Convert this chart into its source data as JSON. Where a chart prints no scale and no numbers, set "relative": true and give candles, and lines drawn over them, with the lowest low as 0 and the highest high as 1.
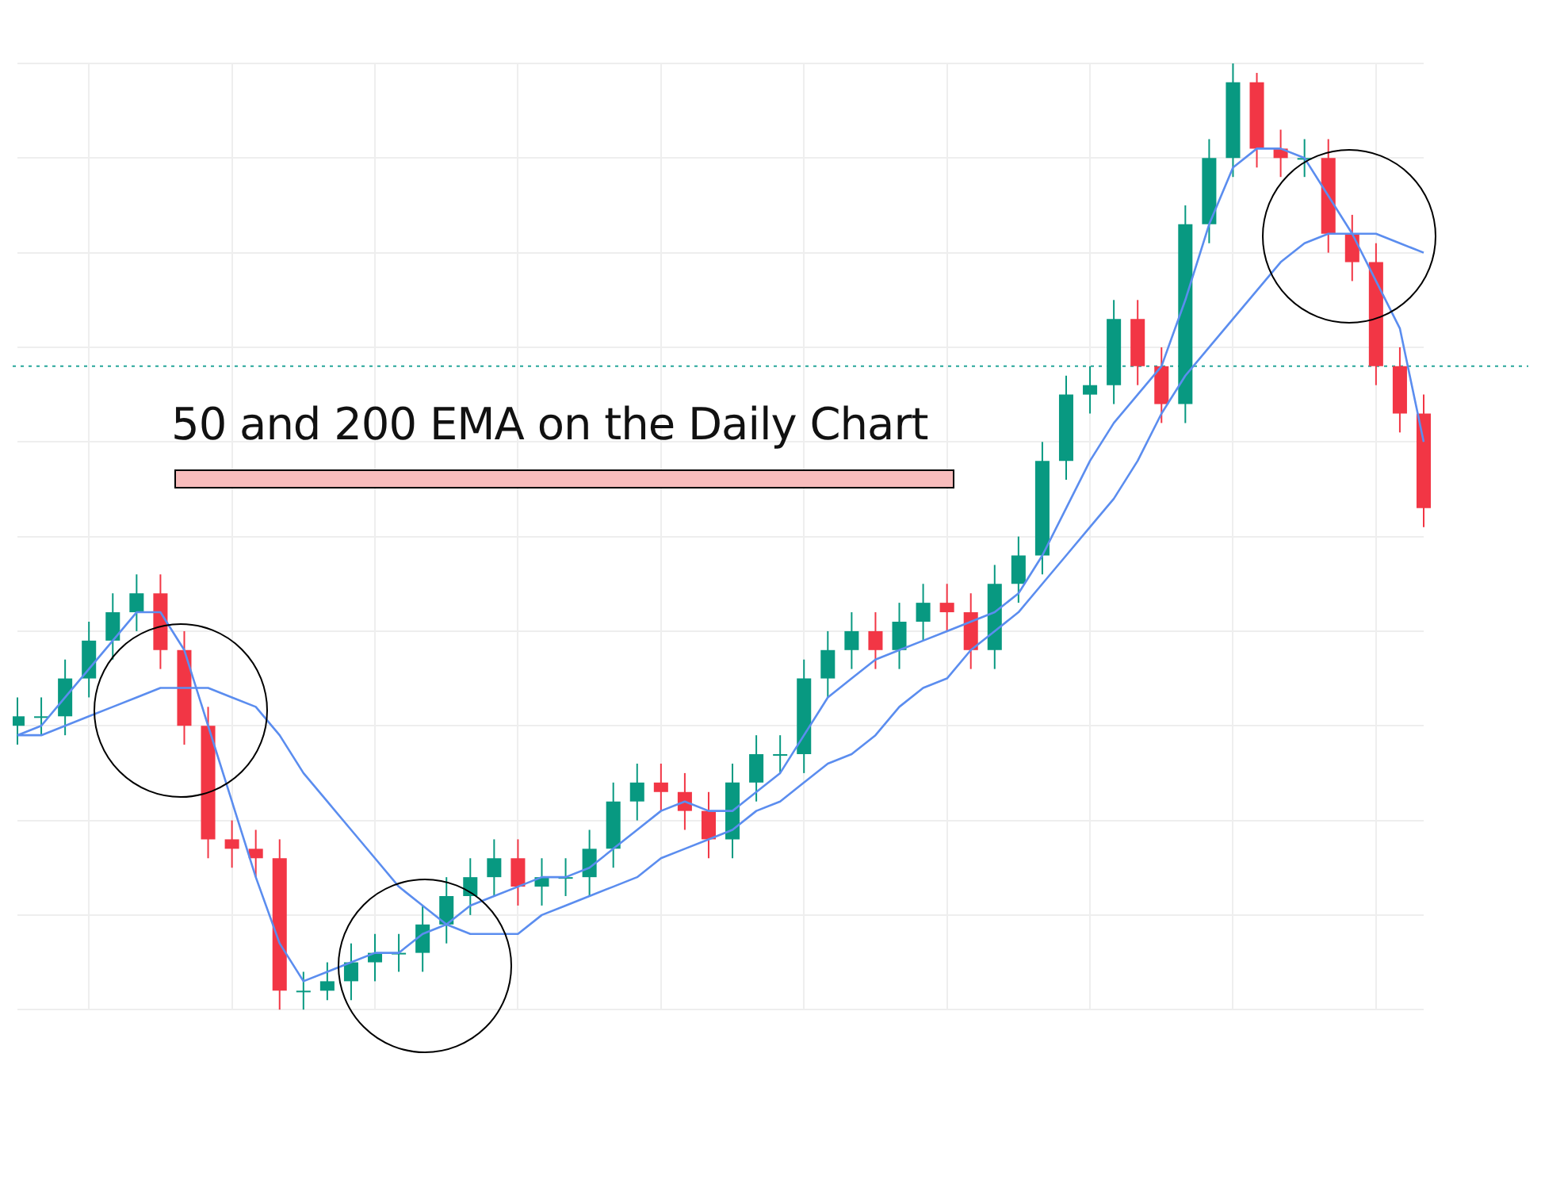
{
  "chart_data": {
    "type": "candlestick",
    "title": "50 and 200 EMA on the Daily Chart",
    "relative": true,
    "grid": true,
    "legend": false,
    "categories": [
      null,
      null,
      null,
      null,
      null,
      null,
      null,
      null,
      null,
      null,
      null,
      null,
      null,
      null,
      null,
      null,
      null,
      null,
      null,
      null,
      null,
      null,
      null,
      null,
      null,
      null,
      null,
      null,
      null,
      null,
      null,
      null,
      null,
      null,
      null,
      null,
      null,
      null,
      null,
      null,
      null,
      null,
      null,
      null,
      null,
      null,
      null,
      null,
      null,
      null,
      null,
      null,
      null,
      null,
      null,
      null,
      null,
      null,
      null,
      null
    ],
    "ohlc": [
      [
        0.3,
        0.33,
        0.28,
        0.31
      ],
      [
        0.31,
        0.33,
        0.29,
        0.31
      ],
      [
        0.31,
        0.37,
        0.29,
        0.35
      ],
      [
        0.35,
        0.41,
        0.33,
        0.39
      ],
      [
        0.39,
        0.44,
        0.37,
        0.42
      ],
      [
        0.42,
        0.46,
        0.4,
        0.44
      ],
      [
        0.44,
        0.46,
        0.36,
        0.38
      ],
      [
        0.38,
        0.4,
        0.28,
        0.3
      ],
      [
        0.3,
        0.32,
        0.16,
        0.18
      ],
      [
        0.18,
        0.2,
        0.15,
        0.17
      ],
      [
        0.17,
        0.19,
        0.14,
        0.16
      ],
      [
        0.16,
        0.18,
        0,
        0.02
      ],
      [
        0.02,
        0.04,
        0,
        0.02
      ],
      [
        0.02,
        0.05,
        0.01,
        0.03
      ],
      [
        0.03,
        0.07,
        0.01,
        0.05
      ],
      [
        0.05,
        0.08,
        0.03,
        0.06
      ],
      [
        0.06,
        0.08,
        0.04,
        0.06
      ],
      [
        0.06,
        0.11,
        0.04,
        0.09
      ],
      [
        0.09,
        0.14,
        0.07,
        0.12
      ],
      [
        0.12,
        0.16,
        0.1,
        0.14
      ],
      [
        0.14,
        0.18,
        0.12,
        0.16
      ],
      [
        0.16,
        0.18,
        0.11,
        0.13
      ],
      [
        0.13,
        0.16,
        0.11,
        0.14
      ],
      [
        0.14,
        0.16,
        0.12,
        0.14
      ],
      [
        0.14,
        0.19,
        0.12,
        0.17
      ],
      [
        0.17,
        0.24,
        0.15,
        0.22
      ],
      [
        0.22,
        0.26,
        0.2,
        0.24
      ],
      [
        0.24,
        0.26,
        0.21,
        0.23
      ],
      [
        0.23,
        0.25,
        0.19,
        0.21
      ],
      [
        0.21,
        0.23,
        0.16,
        0.18
      ],
      [
        0.18,
        0.26,
        0.16,
        0.24
      ],
      [
        0.24,
        0.29,
        0.22,
        0.27
      ],
      [
        0.27,
        0.29,
        0.25,
        0.27
      ],
      [
        0.27,
        0.37,
        0.25,
        0.35
      ],
      [
        0.35,
        0.4,
        0.33,
        0.38
      ],
      [
        0.38,
        0.42,
        0.36,
        0.4
      ],
      [
        0.4,
        0.42,
        0.36,
        0.38
      ],
      [
        0.38,
        0.43,
        0.36,
        0.41
      ],
      [
        0.41,
        0.45,
        0.39,
        0.43
      ],
      [
        0.43,
        0.45,
        0.4,
        0.42
      ],
      [
        0.42,
        0.44,
        0.36,
        0.38
      ],
      [
        0.38,
        0.47,
        0.36,
        0.45
      ],
      [
        0.45,
        0.5,
        0.43,
        0.48
      ],
      [
        0.48,
        0.6,
        0.46,
        0.58
      ],
      [
        0.58,
        0.67,
        0.56,
        0.65
      ],
      [
        0.65,
        0.68,
        0.63,
        0.66
      ],
      [
        0.66,
        0.75,
        0.64,
        0.73
      ],
      [
        0.73,
        0.75,
        0.66,
        0.68
      ],
      [
        0.68,
        0.7,
        0.62,
        0.64
      ],
      [
        0.64,
        0.85,
        0.62,
        0.83
      ],
      [
        0.83,
        0.92,
        0.81,
        0.9
      ],
      [
        0.9,
        1,
        0.88,
        0.98
      ],
      [
        0.98,
        0.99,
        0.89,
        0.91
      ],
      [
        0.91,
        0.93,
        0.88,
        0.9
      ],
      [
        0.9,
        0.92,
        0.88,
        0.9
      ],
      [
        0.9,
        0.92,
        0.8,
        0.82
      ],
      [
        0.82,
        0.84,
        0.77,
        0.79
      ],
      [
        0.79,
        0.81,
        0.66,
        0.68
      ],
      [
        0.68,
        0.7,
        0.61,
        0.63
      ],
      [
        0.63,
        0.65,
        0.51,
        0.53
      ]
    ],
    "colors": [
      "#089981",
      "#089981",
      "#089981",
      "#089981",
      "#089981",
      "#089981",
      "#f23645",
      "#f23645",
      "#f23645",
      "#f23645",
      "#f23645",
      "#f23645",
      "#089981",
      "#089981",
      "#089981",
      "#089981",
      "#089981",
      "#089981",
      "#089981",
      "#089981",
      "#089981",
      "#f23645",
      "#089981",
      "#089981",
      "#089981",
      "#089981",
      "#089981",
      "#f23645",
      "#f23645",
      "#f23645",
      "#089981",
      "#089981",
      "#089981",
      "#089981",
      "#089981",
      "#089981",
      "#f23645",
      "#089981",
      "#089981",
      "#f23645",
      "#f23645",
      "#089981",
      "#089981",
      "#089981",
      "#089981",
      "#089981",
      "#089981",
      "#f23645",
      "#f23645",
      "#089981",
      "#089981",
      "#089981",
      "#f23645",
      "#f23645",
      "#089981",
      "#f23645",
      "#f23645",
      "#f23645",
      "#f23645",
      "#f23645"
    ],
    "series": [
      {
        "type": "line",
        "color": "#5b8def",
        "values": [
          0.29,
          0.3,
          0.33,
          0.36,
          0.39,
          0.42,
          0.42,
          0.38,
          0.3,
          0.22,
          0.14,
          0.07,
          0.03,
          0.04,
          0.05,
          0.06,
          0.06,
          0.08,
          0.09,
          0.11,
          0.12,
          0.13,
          0.14,
          0.14,
          0.15,
          0.17,
          0.19,
          0.21,
          0.22,
          0.21,
          0.21,
          0.23,
          0.25,
          0.29,
          0.33,
          0.35,
          0.37,
          0.38,
          0.39,
          0.4,
          0.41,
          0.42,
          0.44,
          0.48,
          0.53,
          0.58,
          0.62,
          0.65,
          0.68,
          0.75,
          0.83,
          0.89,
          0.91,
          0.91,
          0.9,
          0.86,
          0.82,
          0.77,
          0.72,
          0.6
        ]
      },
      {
        "type": "line",
        "color": "#5b8def",
        "values": [
          0.29,
          0.29,
          0.3,
          0.31,
          0.32,
          0.33,
          0.34,
          0.34,
          0.34,
          0.33,
          0.32,
          0.29,
          0.25,
          0.22,
          0.19,
          0.16,
          0.13,
          0.11,
          0.09,
          0.08,
          0.08,
          0.08,
          0.1,
          0.11,
          0.12,
          0.13,
          0.14,
          0.16,
          0.17,
          0.18,
          0.19,
          0.21,
          0.22,
          0.24,
          0.26,
          0.27,
          0.29,
          0.32,
          0.34,
          0.35,
          0.38,
          0.4,
          0.42,
          0.45,
          0.48,
          0.51,
          0.54,
          0.58,
          0.63,
          0.67,
          0.7,
          0.73,
          0.76,
          0.79,
          0.81,
          0.82,
          0.82,
          0.82,
          0.81,
          0.8
        ]
      }
    ],
    "marker": "none",
    "line_style": "solid",
    "ref_lines": [
      {
        "axis": "y",
        "value": 0.68,
        "color": "#26a69a",
        "line_style": "dotted"
      }
    ]
  }
}
